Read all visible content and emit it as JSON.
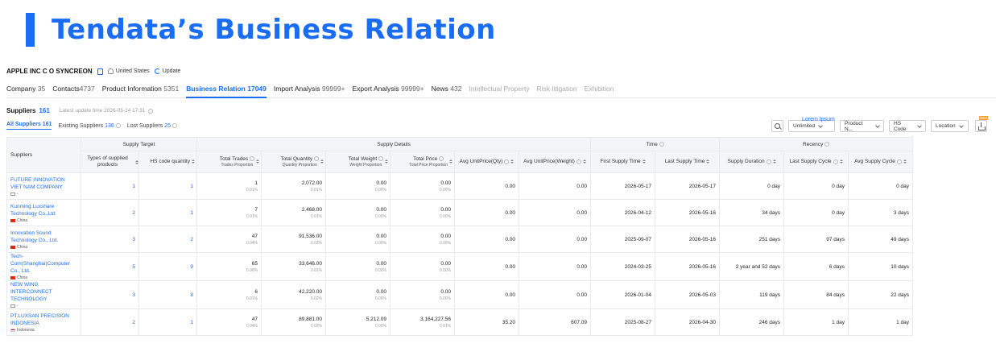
{
  "hero": {
    "title": "Tendata’s Business Relation"
  },
  "company": {
    "name": "APPLE INC C O SYNCREON",
    "country": "United States",
    "update_label": "Update"
  },
  "tabs": [
    {
      "label": "Company",
      "count": "35"
    },
    {
      "label": "Contacts",
      "count": "4737"
    },
    {
      "label": "Product Information",
      "count": "5351"
    },
    {
      "label": "Business Relation",
      "count": "17049"
    },
    {
      "label": "Import Analysis",
      "count": "99999+"
    },
    {
      "label": "Export Analysis",
      "count": "99999+"
    },
    {
      "label": "News",
      "count": "432"
    },
    {
      "label": "Intellectual Property",
      "count": ""
    },
    {
      "label": "Risk litigation",
      "count": ""
    },
    {
      "label": "Exhibition",
      "count": ""
    }
  ],
  "suppliers_header": {
    "label": "Suppliers",
    "count": "161",
    "updated": "Latest update time 2026-05-24 17:31"
  },
  "subtabs": [
    {
      "label": "All Suppliers",
      "count": "161"
    },
    {
      "label": "Existing Suppliers",
      "count": "136"
    },
    {
      "label": "Lost Suppliers",
      "count": "25"
    }
  ],
  "filters": {
    "lorem": "Lorem Ipsum",
    "unlimited": "Unlimited",
    "product": "Product N...",
    "hscode": "HS Code",
    "location": "Location",
    "beta": "Beta"
  },
  "table": {
    "group_headers": {
      "suppliers": "Suppliers",
      "supply_target": "Supply Target",
      "supply_details": "Supply Details",
      "time": "Time",
      "recency": "Recency"
    },
    "columns": {
      "types": "Types of supplied products",
      "hs_qty": "HS code quantity",
      "total_trades": "Total Trades",
      "trades_prop": "Trades Proportion",
      "total_qty": "Total Quantity",
      "qty_prop": "Quantity Proportion",
      "total_weight": "Total Weight",
      "weight_prop": "Weight Proportion",
      "total_price": "Total Price",
      "price_prop": "Total Price Proportion",
      "avg_unit_qty": "Avg UnitPrice(Qty)",
      "avg_unit_weight": "Avg UnitPrice(Weight)",
      "first_supply": "First Supply Time",
      "last_supply": "Last Supply Time",
      "duration": "Supply Duration",
      "last_cycle": "Last Supply Cycle",
      "avg_cycle": "Avg Supply Cycle"
    },
    "rows": [
      {
        "name": "FUTURE INNOVATION VIET NAM COMPANY",
        "country": "-",
        "types": "1",
        "hs": "1",
        "trades": "1",
        "trades_p": "0.01%",
        "qty": "2,072.00",
        "qty_p": "0.01%",
        "weight": "0.00",
        "weight_p": "0.00%",
        "price": "0.00",
        "price_p": "0.00%",
        "avg_q": "0.00",
        "avg_w": "0.00",
        "first": "2026-05-17",
        "last": "2026-05-17",
        "dur": "0 day",
        "lcycle": "0 day",
        "acycle": "0 day"
      },
      {
        "name": "Kunming Luxshare Technology Co.,Ltd",
        "country": "China",
        "types": "2",
        "hs": "1",
        "trades": "7",
        "trades_p": "0.01%",
        "qty": "2,468.00",
        "qty_p": "0.01%",
        "weight": "0.00",
        "weight_p": "0.00%",
        "price": "0.00",
        "price_p": "0.00%",
        "avg_q": "0.00",
        "avg_w": "0.00",
        "first": "2026-04-12",
        "last": "2026-05-16",
        "dur": "34 days",
        "lcycle": "0 day",
        "acycle": "3 days"
      },
      {
        "name": "Innovation Sound Technology Co., Ltd.",
        "country": "China",
        "types": "3",
        "hs": "2",
        "trades": "47",
        "trades_p": "0.04%",
        "qty": "91,536.00",
        "qty_p": "0.03%",
        "weight": "0.00",
        "weight_p": "0.00%",
        "price": "0.00",
        "price_p": "0.00%",
        "avg_q": "0.00",
        "avg_w": "0.00",
        "first": "2025-09-07",
        "last": "2026-05-16",
        "dur": "251 days",
        "lcycle": "97 days",
        "acycle": "49 days"
      },
      {
        "name": "Tech-Com(Shanghai)Computer Co., Ltd.",
        "country": "China",
        "types": "5",
        "hs": "9",
        "trades": "65",
        "trades_p": "0.06%",
        "qty": "33,646.00",
        "qty_p": "0.01%",
        "weight": "0.00",
        "weight_p": "0.00%",
        "price": "0.00",
        "price_p": "0.00%",
        "avg_q": "0.00",
        "avg_w": "0.00",
        "first": "2024-03-25",
        "last": "2026-05-16",
        "dur": "2 year and 52 days",
        "lcycle": "6 days",
        "acycle": "10 days"
      },
      {
        "name": "NEW WING INTERCONNECT TECHNOLOGY",
        "country": "-",
        "types": "3",
        "hs": "8",
        "trades": "6",
        "trades_p": "0.01%",
        "qty": "42,220.00",
        "qty_p": "0.02%",
        "weight": "0.00",
        "weight_p": "0.00%",
        "price": "0.00",
        "price_p": "0.00%",
        "avg_q": "0.00",
        "avg_w": "0.00",
        "first": "2026-01-04",
        "last": "2026-05-03",
        "dur": "119 days",
        "lcycle": "84 days",
        "acycle": "22 days"
      },
      {
        "name": "PT.LUXSAN PRECISION INDONESIA",
        "country": "Indonesia",
        "types": "2",
        "hs": "1",
        "trades": "47",
        "trades_p": "0.04%",
        "qty": "89,881.00",
        "qty_p": "0.03%",
        "weight": "5,212.09",
        "weight_p": "0.00%",
        "price": "3,164,227.56",
        "price_p": "0.01%",
        "avg_q": "35.20",
        "avg_w": "607.09",
        "first": "2025-08-27",
        "last": "2026-04-30",
        "dur": "246 days",
        "lcycle": "1 day",
        "acycle": "1 day"
      }
    ]
  }
}
